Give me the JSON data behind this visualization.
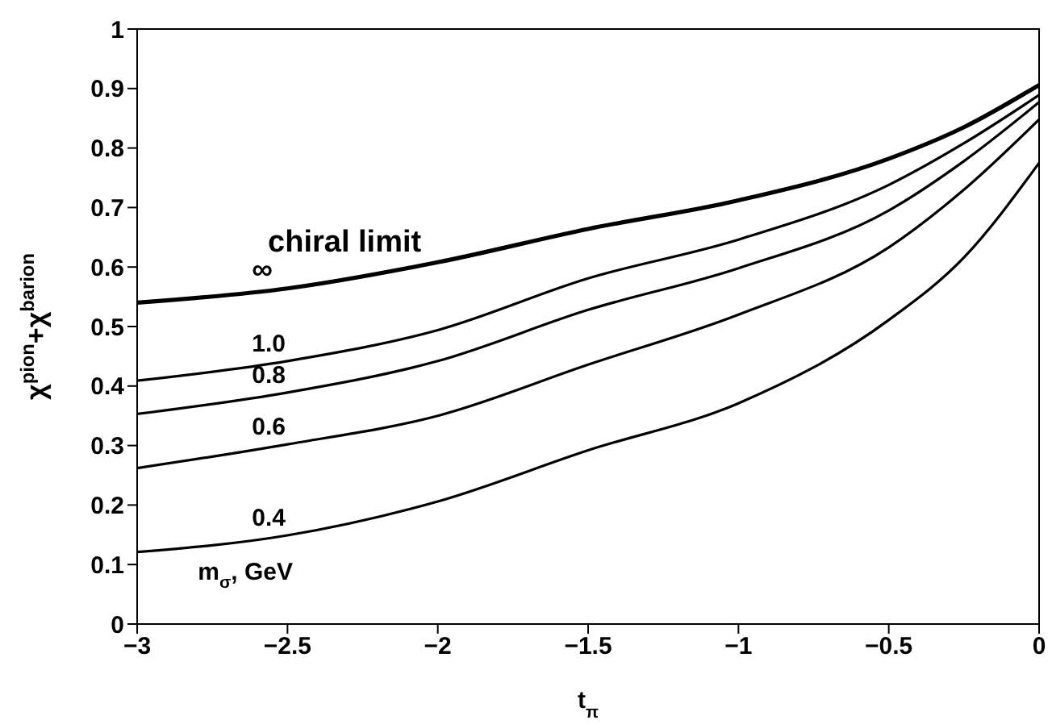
{
  "chart_data": {
    "type": "line",
    "xlabel": "t$_{π}$",
    "ylabel": "χ$^{pion}$+χ$^{barion}$",
    "x": [
      -3,
      -2.5,
      -2,
      -1.5,
      -1,
      -0.5,
      -0.25,
      0
    ],
    "series": [
      {
        "name": "∞",
        "color": "#000000",
        "values": [
          0.54,
          0.564,
          0.608,
          0.664,
          0.712,
          0.782,
          0.835,
          0.906
        ]
      },
      {
        "name": "1.0",
        "color": "#000000",
        "values": [
          0.409,
          0.442,
          0.494,
          0.581,
          0.646,
          0.738,
          0.808,
          0.889
        ]
      },
      {
        "name": "0.8",
        "color": "#000000",
        "values": [
          0.353,
          0.389,
          0.442,
          0.528,
          0.598,
          0.695,
          0.778,
          0.877
        ]
      },
      {
        "name": "0.6",
        "color": "#000000",
        "values": [
          0.262,
          0.302,
          0.35,
          0.436,
          0.52,
          0.633,
          0.73,
          0.848
        ]
      },
      {
        "name": "0.4",
        "color": "#000000",
        "values": [
          0.121,
          0.149,
          0.206,
          0.292,
          0.371,
          0.511,
          0.616,
          0.775
        ]
      }
    ],
    "annotations": [
      "chiral limit",
      "m$_{σ}$, GeV"
    ],
    "xlim": [
      -3,
      0
    ],
    "ylim": [
      0,
      1
    ],
    "xticks": [
      {
        "value": -3,
        "label": "−3"
      },
      {
        "value": -2.5,
        "label": "−2.5"
      },
      {
        "value": -2,
        "label": "−2"
      },
      {
        "value": -1.5,
        "label": "−1.5"
      },
      {
        "value": -1,
        "label": "−1"
      },
      {
        "value": -0.5,
        "label": "−0.5"
      },
      0
    ],
    "yticks": [
      0,
      0.1,
      0.2,
      0.3,
      0.4,
      0.5,
      0.6,
      0.7,
      0.8,
      0.9,
      1
    ],
    "marker": "none",
    "line_style": "solid"
  }
}
